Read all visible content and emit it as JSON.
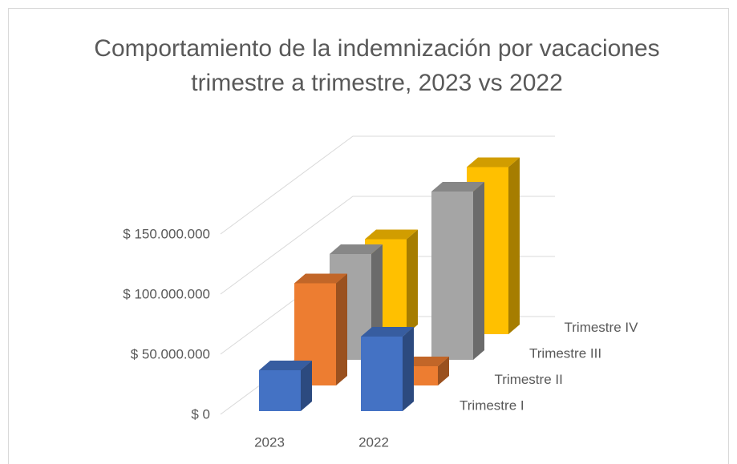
{
  "chart_data": {
    "type": "bar3d",
    "title": "Comportamiento de la indemnización por vacaciones trimestre a trimestre, 2023 vs 2022",
    "categories": [
      "2023",
      "2022"
    ],
    "series": [
      {
        "name": "Trimestre I",
        "color": "#4472c4",
        "values": [
          34000000,
          62000000
        ]
      },
      {
        "name": "Trimestre II",
        "color": "#ed7d31",
        "values": [
          85000000,
          16000000
        ]
      },
      {
        "name": "Trimestre III",
        "color": "#a5a5a5",
        "values": [
          88000000,
          140000000
        ]
      },
      {
        "name": "Trimestre IV",
        "color": "#ffc000",
        "values": [
          79000000,
          139000000
        ]
      }
    ],
    "ylim": [
      0,
      150000000
    ],
    "yticks": [
      {
        "value": 0,
        "label": "$ 0"
      },
      {
        "value": 50000000,
        "label": "$ 50.000.000"
      },
      {
        "value": 100000000,
        "label": "$ 100.000.000"
      },
      {
        "value": 150000000,
        "label": "$ 150.000.000"
      }
    ],
    "grid": true
  }
}
